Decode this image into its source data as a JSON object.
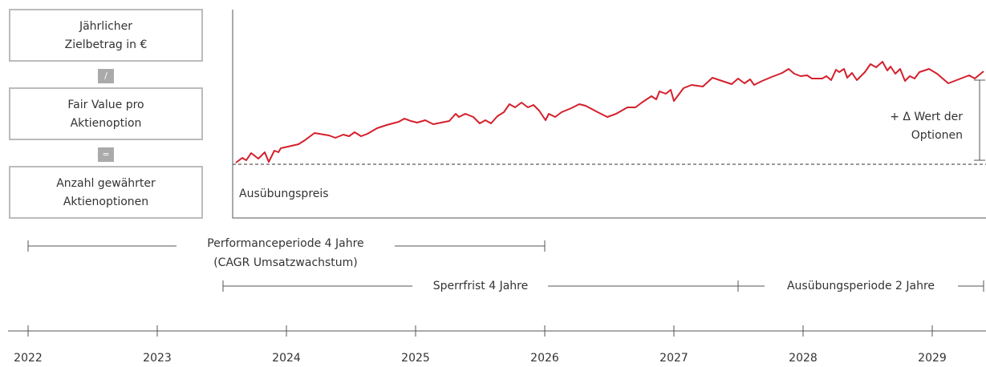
{
  "boxes": [
    {
      "lines": [
        "Jährlicher",
        "Zielbetrag in €"
      ]
    },
    {
      "lines": [
        "Fair Value pro",
        "Aktienoption"
      ]
    },
    {
      "lines": [
        "Anzahl gewährter",
        "Aktienoptionen"
      ]
    }
  ],
  "operators": [
    "/",
    "="
  ],
  "chart": {
    "strike_label": "Ausübungspreis",
    "delta_lines": [
      "+ Δ Wert der",
      "Optionen"
    ]
  },
  "periods": [
    {
      "lines": [
        "Performanceperiode 4 Jahre",
        "(CAGR Umsatzwachstum)"
      ]
    },
    {
      "lines": [
        "Sperrfrist 4 Jahre"
      ]
    },
    {
      "lines": [
        "Ausübungsperiode 2 Jahre"
      ]
    }
  ],
  "years": [
    "2022",
    "2023",
    "2024",
    "2025",
    "2026",
    "2027",
    "2028",
    "2029"
  ]
}
